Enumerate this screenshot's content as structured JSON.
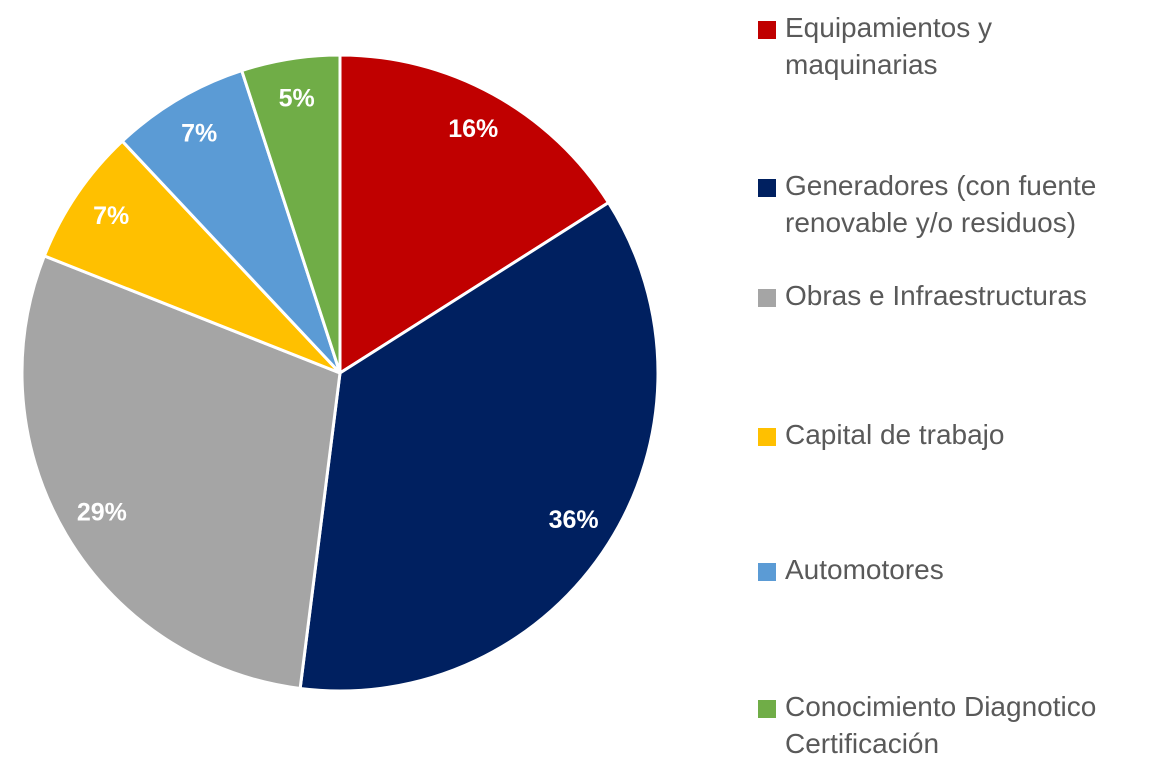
{
  "chart_data": {
    "type": "pie",
    "categories": [
      "Equipamientos y maquinarias",
      "Generadores (con fuente renovable y/o residuos)",
      "Obras e Infraestructuras",
      "Capital de trabajo",
      "Automotores",
      "Conocimiento Diagnotico Certificación"
    ],
    "values": [
      16,
      36,
      29,
      7,
      7,
      5
    ],
    "value_labels": [
      "16%",
      "36%",
      "29%",
      "7%",
      "7%",
      "5%"
    ],
    "colors": [
      "#c00000",
      "#002060",
      "#a5a5a5",
      "#ffc000",
      "#5b9bd5",
      "#70ad47"
    ],
    "legend": "right"
  }
}
